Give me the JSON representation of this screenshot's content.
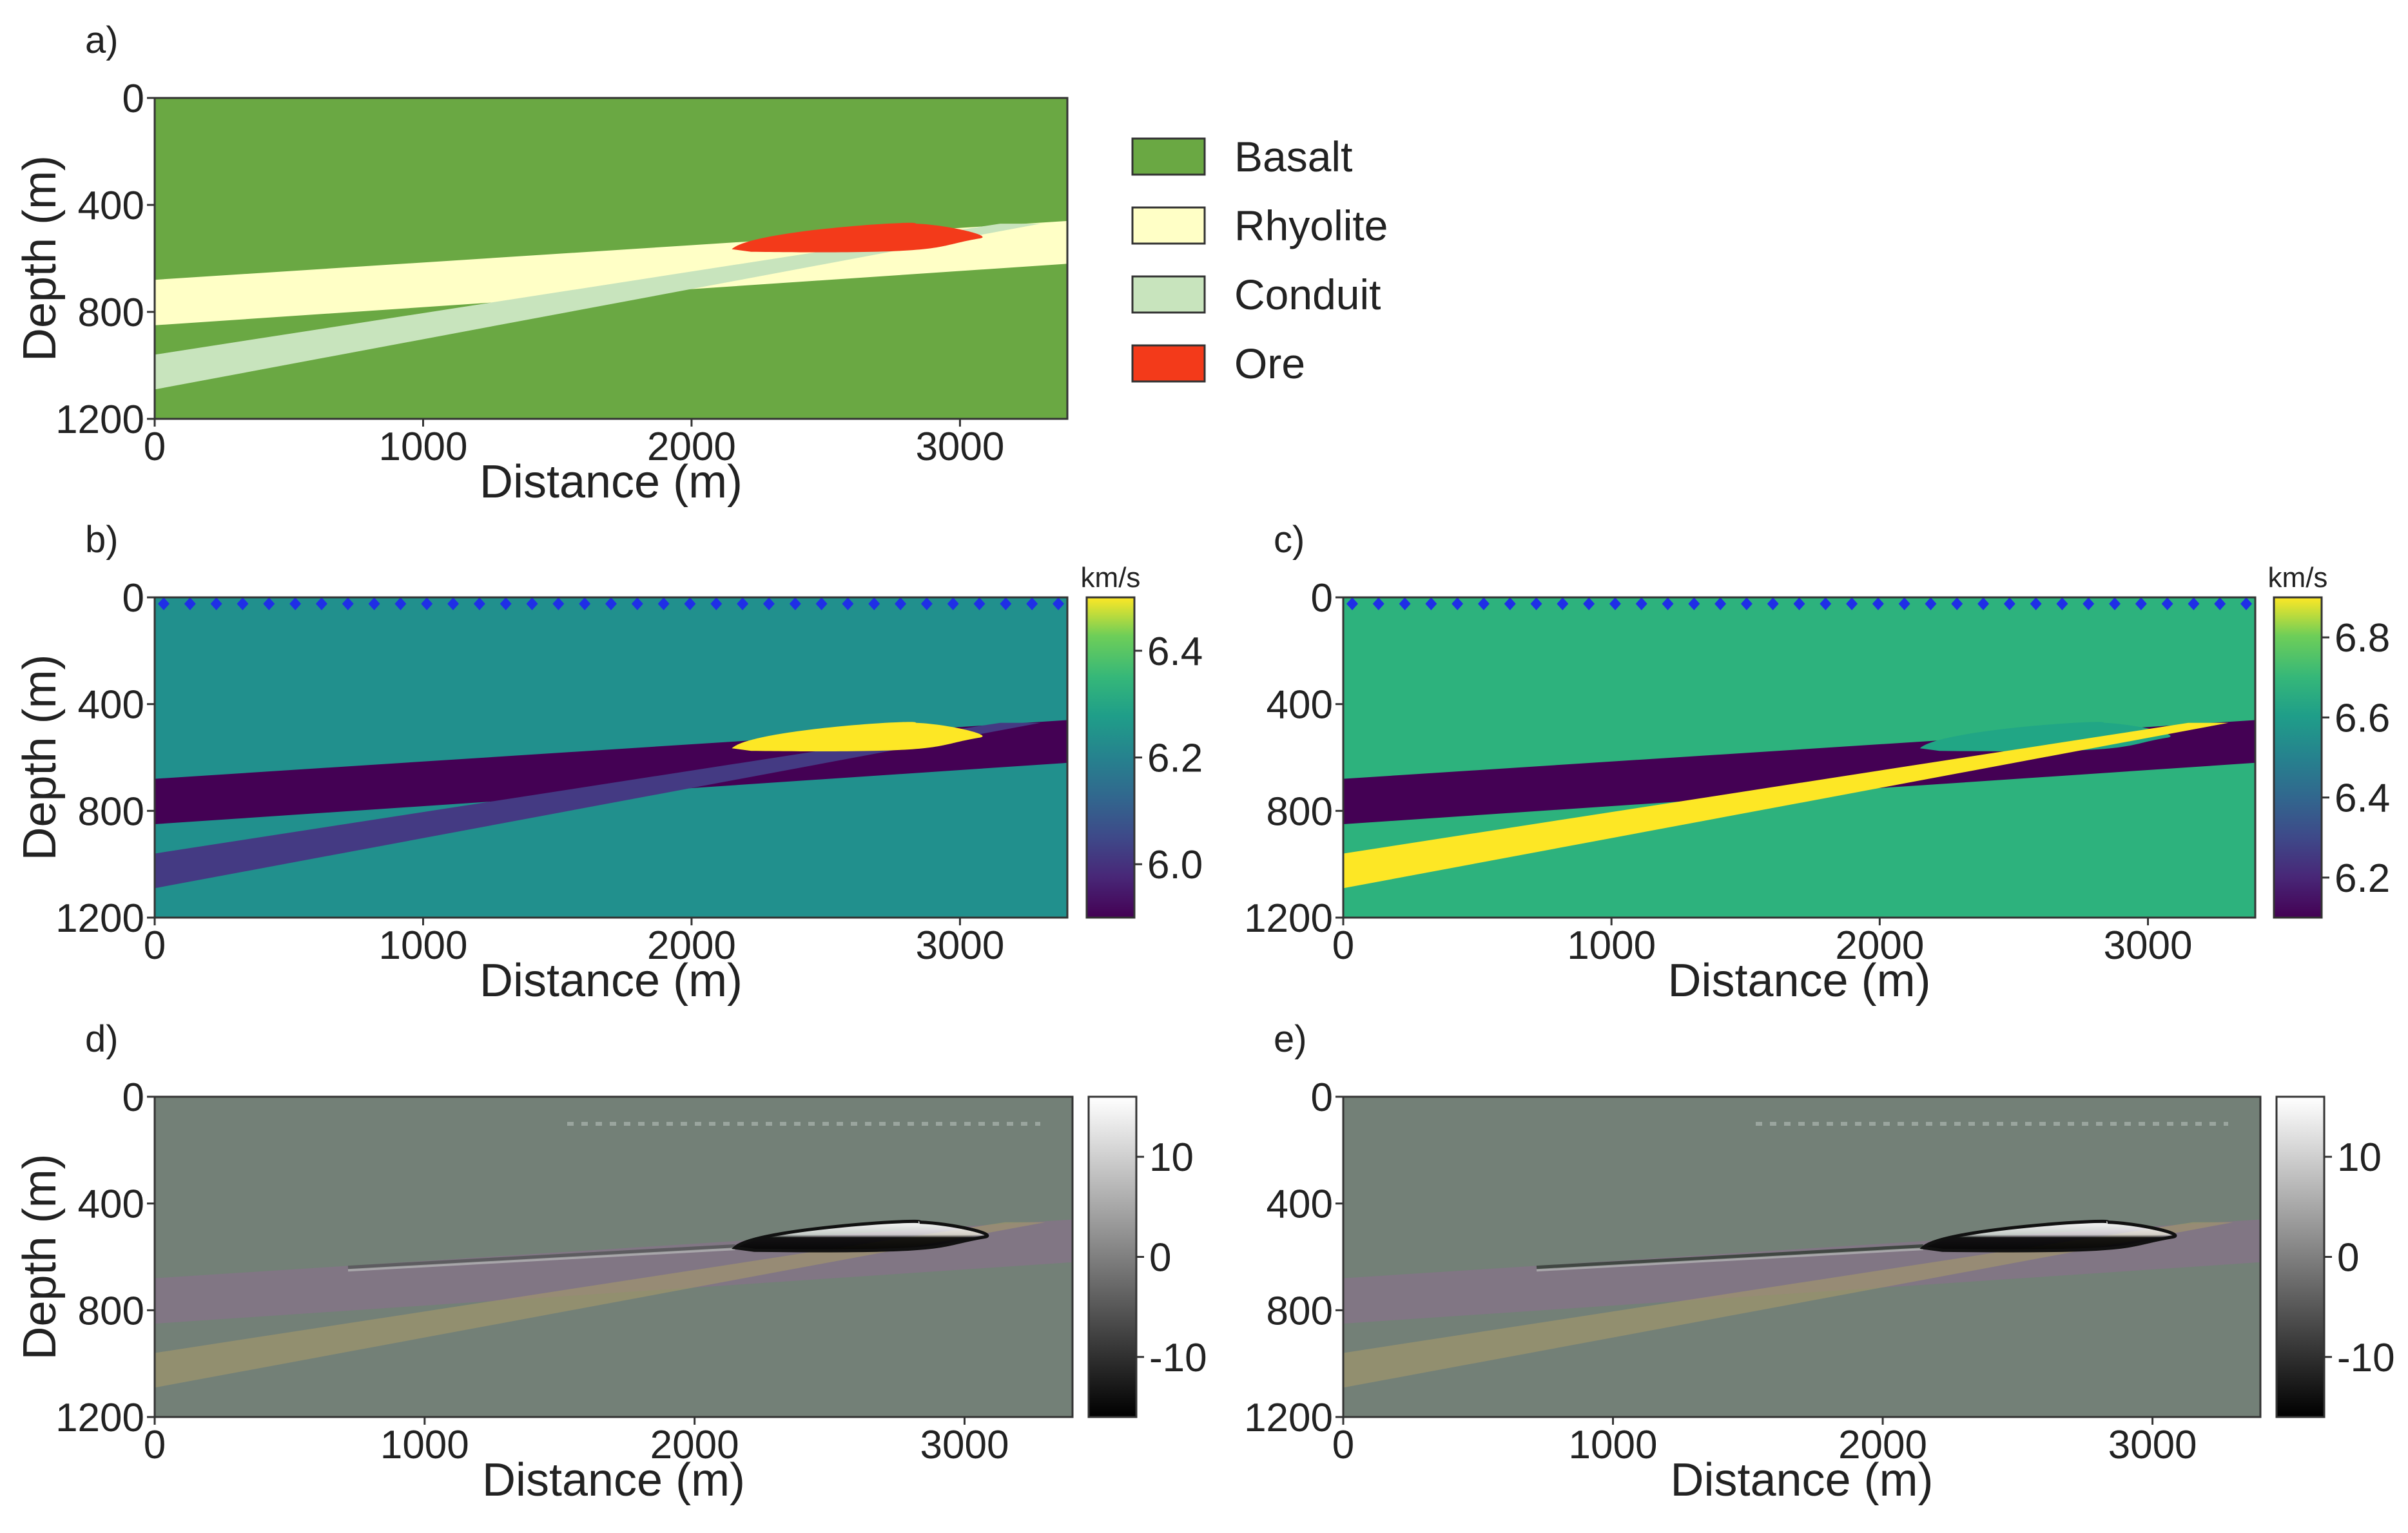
{
  "chart_data": [
    {
      "id": "a",
      "panel_label": "a)",
      "type": "heatmap",
      "xlabel": "Distance (m)",
      "ylabel": "Depth (m)",
      "xlim": [
        0,
        3400
      ],
      "ylim": [
        1200,
        0
      ],
      "xticks": [
        0,
        1000,
        2000,
        3000
      ],
      "yticks": [
        0,
        400,
        800,
        1200
      ],
      "legend": {
        "position": "right",
        "entries": [
          {
            "label": "Basalt",
            "color": "#6aa843"
          },
          {
            "label": "Rhyolite",
            "color": "#ffffc6"
          },
          {
            "label": "Conduit",
            "color": "#c8e4bd"
          },
          {
            "label": "Ore",
            "color": "#f33a1a"
          }
        ]
      }
    },
    {
      "id": "b",
      "panel_label": "b)",
      "type": "heatmap",
      "xlabel": "Distance (m)",
      "ylabel": "Depth (m)",
      "xlim": [
        0,
        3400
      ],
      "ylim": [
        1200,
        0
      ],
      "xticks": [
        0,
        1000,
        2000,
        3000
      ],
      "yticks": [
        0,
        400,
        800,
        1200
      ],
      "colorbar": {
        "unit": "km/s",
        "range": [
          5.9,
          6.5
        ],
        "ticks": [
          6.0,
          6.2,
          6.4
        ],
        "colormap": "viridis"
      },
      "units": [
        {
          "name": "Basalt",
          "velocity": 6.2,
          "color": "#21908d"
        },
        {
          "name": "Rhyolite",
          "velocity": 5.9,
          "color": "#440154"
        },
        {
          "name": "Conduit",
          "velocity": 6.0,
          "color": "#443a83"
        },
        {
          "name": "Ore",
          "velocity": 6.5,
          "color": "#fde725"
        }
      ],
      "receivers": {
        "count": 35,
        "depth": 0,
        "color": "#1f2ee6"
      }
    },
    {
      "id": "c",
      "panel_label": "c)",
      "type": "heatmap",
      "xlabel": "Distance (m)",
      "ylabel": "",
      "xlim": [
        0,
        3400
      ],
      "ylim": [
        1200,
        0
      ],
      "xticks": [
        0,
        1000,
        2000,
        3000
      ],
      "yticks": [
        0,
        400,
        800,
        1200
      ],
      "colorbar": {
        "unit": "km/s",
        "range": [
          6.1,
          6.9
        ],
        "ticks": [
          6.2,
          6.4,
          6.6,
          6.8
        ],
        "colormap": "viridis"
      },
      "units": [
        {
          "name": "Basalt",
          "velocity": 6.6,
          "color": "#2db27d"
        },
        {
          "name": "Rhyolite",
          "velocity": 6.1,
          "color": "#440154"
        },
        {
          "name": "Conduit",
          "velocity": 6.9,
          "color": "#fde725"
        },
        {
          "name": "Ore",
          "velocity": 6.45,
          "color": "#21a685"
        }
      ],
      "receivers": {
        "count": 35,
        "depth": 0,
        "color": "#1f2ee6"
      }
    },
    {
      "id": "d",
      "panel_label": "d)",
      "type": "heatmap",
      "xlabel": "Distance (m)",
      "ylabel": "Depth (m)",
      "xlim": [
        0,
        3400
      ],
      "ylim": [
        1200,
        0
      ],
      "xticks": [
        0,
        1000,
        2000,
        3000
      ],
      "yticks": [
        0,
        400,
        800,
        1200
      ],
      "colorbar": {
        "range": [
          -16,
          16
        ],
        "ticks": [
          -10,
          0,
          10
        ],
        "colormap": "gray"
      }
    },
    {
      "id": "e",
      "panel_label": "e)",
      "type": "heatmap",
      "xlabel": "Distance (m)",
      "ylabel": "",
      "xlim": [
        0,
        3400
      ],
      "ylim": [
        1200,
        0
      ],
      "xticks": [
        0,
        1000,
        2000,
        3000
      ],
      "yticks": [
        0,
        400,
        800,
        1200
      ],
      "colorbar": {
        "range": [
          -16,
          16
        ],
        "ticks": [
          -10,
          0,
          10
        ],
        "colormap": "gray"
      }
    }
  ],
  "geology": {
    "rhyolite": [
      [
        0,
        680
      ],
      [
        3400,
        460
      ],
      [
        3400,
        620
      ],
      [
        0,
        850
      ]
    ],
    "conduit": [
      [
        0,
        960
      ],
      [
        3150,
        470
      ],
      [
        3300,
        470
      ],
      [
        0,
        1090
      ]
    ],
    "ore": {
      "x_start": 2150,
      "x_end": 3100,
      "top_depth": 470,
      "base_depth": 580
    }
  }
}
